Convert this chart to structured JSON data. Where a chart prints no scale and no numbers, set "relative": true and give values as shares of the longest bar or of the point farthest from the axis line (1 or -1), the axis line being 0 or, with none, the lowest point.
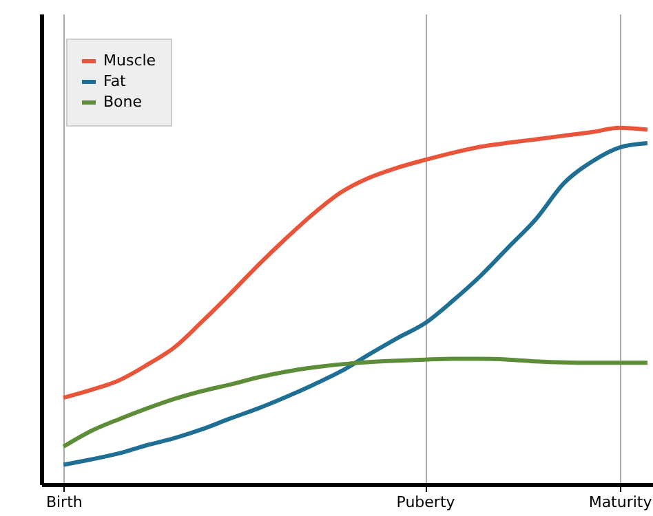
{
  "chart_data": {
    "type": "line",
    "relative": true,
    "categories": [
      "Birth",
      null,
      null,
      null,
      null,
      null,
      null,
      null,
      null,
      null,
      null,
      null,
      null,
      "Puberty",
      null,
      null,
      null,
      null,
      null,
      null,
      "Maturity",
      null
    ],
    "series": [
      {
        "name": "Muscle",
        "color": "#e8553a",
        "values": [
          0.243,
          0.265,
          0.292,
          0.335,
          0.385,
          0.458,
          0.535,
          0.615,
          0.69,
          0.76,
          0.82,
          0.86,
          0.888,
          0.91,
          0.93,
          0.947,
          0.958,
          0.968,
          0.978,
          0.988,
          1.0,
          0.995
        ]
      },
      {
        "name": "Fat",
        "color": "#1f6e94",
        "values": [
          0.055,
          0.07,
          0.087,
          0.11,
          0.13,
          0.155,
          0.185,
          0.213,
          0.245,
          0.28,
          0.318,
          0.365,
          0.41,
          0.452,
          0.515,
          0.585,
          0.665,
          0.745,
          0.845,
          0.905,
          0.945,
          0.957
        ]
      },
      {
        "name": "Bone",
        "color": "#5e8d3a",
        "values": [
          0.106,
          0.15,
          0.183,
          0.213,
          0.24,
          0.262,
          0.28,
          0.3,
          0.316,
          0.328,
          0.337,
          0.343,
          0.347,
          0.35,
          0.352,
          0.352,
          0.35,
          0.345,
          0.342,
          0.341,
          0.341,
          0.341
        ]
      }
    ],
    "grid": "x",
    "legend": "top left",
    "marker": "none",
    "line_style": "solid"
  }
}
